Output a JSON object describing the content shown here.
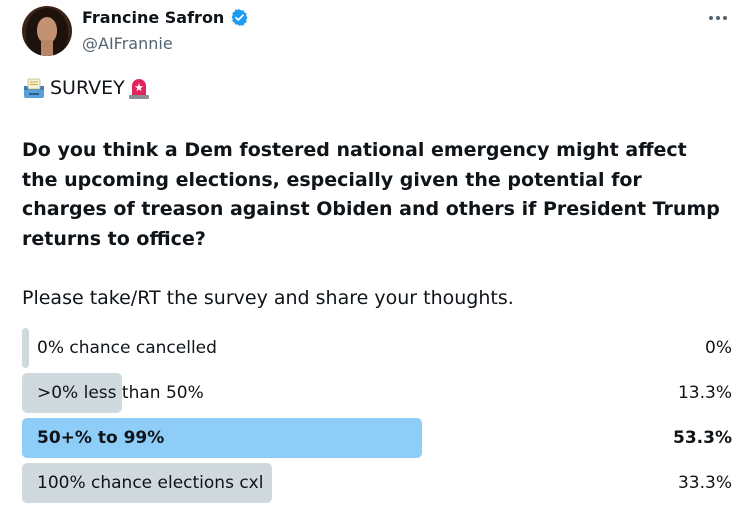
{
  "author": {
    "display_name": "Francine Safron",
    "handle": "@AIFrannie",
    "verified_icon": "verified-badge-icon",
    "verified_color": "#1d9bf0"
  },
  "post": {
    "survey_prefix_icon": "ballot-box-icon",
    "survey_word": "SURVEY",
    "survey_suffix_icon": "rotating-light-icon",
    "question": "Do you think a Dem fostered national emergency might affect the upcoming elections, especially given the potential for charges of treason against Obiden and others if President Trump returns to office?",
    "prompt": "Please take/RT the survey and share your thoughts."
  },
  "poll": {
    "options": [
      {
        "label": "0% chance cancelled",
        "percent_text": "0%",
        "fraction": 0.0,
        "winner": false
      },
      {
        "label": ">0% less than 50%",
        "percent_text": "13.3%",
        "fraction": 0.133,
        "winner": false
      },
      {
        "label": "50+% to 99%",
        "percent_text": "53.3%",
        "fraction": 0.533,
        "winner": true
      },
      {
        "label": "100% chance elections cxl",
        "percent_text": "33.3%",
        "fraction": 0.333,
        "winner": false
      }
    ],
    "bar_color": "#cfd9de",
    "winner_color": "#8ecdf8"
  },
  "menu_icon": "more-dots-icon"
}
